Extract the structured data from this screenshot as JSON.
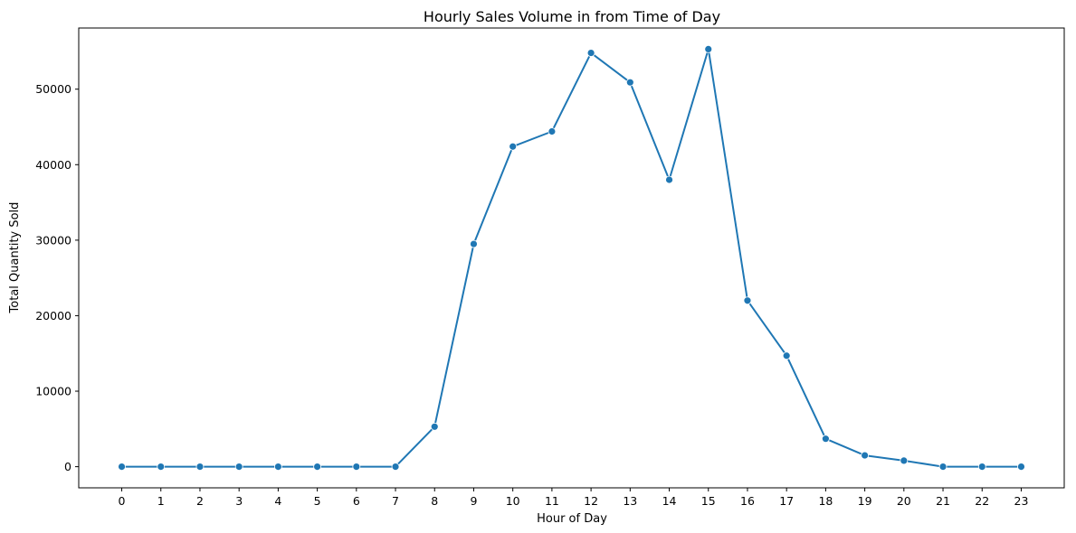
{
  "colors": {
    "series": "#1f77b4"
  },
  "chart_data": {
    "type": "line",
    "title": "Hourly Sales Volume in from Time of Day",
    "xlabel": "Hour of Day",
    "ylabel": "Total Quantity Sold",
    "x": [
      0,
      1,
      2,
      3,
      4,
      5,
      6,
      7,
      8,
      9,
      10,
      11,
      12,
      13,
      14,
      15,
      16,
      17,
      18,
      19,
      20,
      21,
      22,
      23
    ],
    "x_tick_labels": [
      "0",
      "1",
      "2",
      "3",
      "4",
      "5",
      "6",
      "7",
      "8",
      "9",
      "10",
      "11",
      "12",
      "13",
      "14",
      "15",
      "16",
      "17",
      "18",
      "19",
      "20",
      "21",
      "22",
      "23"
    ],
    "series": [
      {
        "values": [
          0,
          0,
          0,
          0,
          0,
          0,
          0,
          0,
          5300,
          29500,
          42400,
          44400,
          54800,
          50900,
          38000,
          55300,
          22000,
          14700,
          3700,
          1500,
          800,
          0,
          0,
          0
        ],
        "marker": "circle"
      }
    ],
    "xlim": [
      -1.1,
      24.1
    ],
    "ylim": [
      -2800,
      58100
    ],
    "y_ticks": [
      0,
      10000,
      20000,
      30000,
      40000,
      50000
    ],
    "y_tick_labels": [
      "0",
      "10000",
      "20000",
      "30000",
      "40000",
      "50000"
    ],
    "grid": false,
    "legend": "none"
  }
}
